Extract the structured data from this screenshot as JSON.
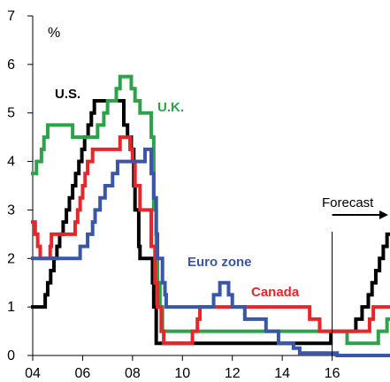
{
  "chart_data": {
    "type": "line",
    "ylabel": "%",
    "xlim": [
      2004,
      2018
    ],
    "ylim": [
      0,
      7
    ],
    "x_ticks": [
      2004,
      2006,
      2008,
      2010,
      2012,
      2014,
      2016
    ],
    "x_tick_labels": [
      "04",
      "06",
      "08",
      "10",
      "12",
      "14",
      "16"
    ],
    "y_ticks": [
      0,
      1,
      2,
      3,
      4,
      5,
      6,
      7
    ],
    "y_tick_labels": [
      "0",
      "1",
      "2",
      "3",
      "4",
      "5",
      "6",
      "7"
    ],
    "forecast_label": "Forecast",
    "forecast_start": 2016,
    "series": [
      {
        "name": "U.S.",
        "color": "#000000",
        "points": [
          [
            2004,
            1.0
          ],
          [
            2004.5,
            1.0
          ],
          [
            2004.5,
            1.25
          ],
          [
            2004.6,
            1.25
          ],
          [
            2004.6,
            1.5
          ],
          [
            2004.72,
            1.5
          ],
          [
            2004.72,
            1.75
          ],
          [
            2004.85,
            1.75
          ],
          [
            2004.85,
            2.0
          ],
          [
            2004.97,
            2.0
          ],
          [
            2004.97,
            2.25
          ],
          [
            2005.08,
            2.25
          ],
          [
            2005.08,
            2.5
          ],
          [
            2005.22,
            2.5
          ],
          [
            2005.22,
            2.75
          ],
          [
            2005.35,
            2.75
          ],
          [
            2005.35,
            3.0
          ],
          [
            2005.47,
            3.0
          ],
          [
            2005.47,
            3.25
          ],
          [
            2005.6,
            3.25
          ],
          [
            2005.6,
            3.5
          ],
          [
            2005.72,
            3.5
          ],
          [
            2005.72,
            3.75
          ],
          [
            2005.85,
            3.75
          ],
          [
            2005.85,
            4.0
          ],
          [
            2005.97,
            4.0
          ],
          [
            2005.97,
            4.25
          ],
          [
            2006.08,
            4.25
          ],
          [
            2006.08,
            4.5
          ],
          [
            2006.22,
            4.5
          ],
          [
            2006.22,
            4.75
          ],
          [
            2006.35,
            4.75
          ],
          [
            2006.35,
            5.0
          ],
          [
            2006.47,
            5.0
          ],
          [
            2006.47,
            5.25
          ],
          [
            2007.65,
            5.25
          ],
          [
            2007.65,
            4.75
          ],
          [
            2007.8,
            4.75
          ],
          [
            2007.8,
            4.5
          ],
          [
            2007.95,
            4.5
          ],
          [
            2007.95,
            4.25
          ],
          [
            2008.05,
            4.25
          ],
          [
            2008.05,
            3.5
          ],
          [
            2008.1,
            3.5
          ],
          [
            2008.1,
            3.0
          ],
          [
            2008.25,
            3.0
          ],
          [
            2008.25,
            2.25
          ],
          [
            2008.3,
            2.25
          ],
          [
            2008.3,
            2.0
          ],
          [
            2008.8,
            2.0
          ],
          [
            2008.8,
            1.5
          ],
          [
            2008.85,
            1.5
          ],
          [
            2008.85,
            1.0
          ],
          [
            2008.95,
            1.0
          ],
          [
            2008.95,
            0.25
          ],
          [
            2015.95,
            0.25
          ],
          [
            2015.95,
            0.5
          ],
          [
            2016.95,
            0.5
          ],
          [
            2016.95,
            0.75
          ],
          [
            2017.2,
            0.75
          ],
          [
            2017.2,
            1.0
          ],
          [
            2017.45,
            1.0
          ],
          [
            2017.45,
            1.25
          ],
          [
            2017.6,
            1.25
          ],
          [
            2017.6,
            1.5
          ],
          [
            2017.75,
            1.5
          ],
          [
            2017.75,
            1.75
          ],
          [
            2017.9,
            1.75
          ],
          [
            2017.9,
            2.0
          ],
          [
            2018.05,
            2.0
          ],
          [
            2018.05,
            2.25
          ],
          [
            2018.2,
            2.25
          ],
          [
            2018.2,
            2.5
          ],
          [
            2018.3,
            2.5
          ]
        ]
      },
      {
        "name": "U.K.",
        "color": "#2ca24a",
        "points": [
          [
            2004,
            3.75
          ],
          [
            2004.15,
            3.75
          ],
          [
            2004.15,
            4.0
          ],
          [
            2004.35,
            4.0
          ],
          [
            2004.35,
            4.25
          ],
          [
            2004.45,
            4.25
          ],
          [
            2004.45,
            4.5
          ],
          [
            2004.6,
            4.5
          ],
          [
            2004.6,
            4.75
          ],
          [
            2005.6,
            4.75
          ],
          [
            2005.6,
            4.5
          ],
          [
            2006.6,
            4.5
          ],
          [
            2006.6,
            4.75
          ],
          [
            2006.85,
            4.75
          ],
          [
            2006.85,
            5.0
          ],
          [
            2007.0,
            5.0
          ],
          [
            2007.0,
            5.25
          ],
          [
            2007.35,
            5.25
          ],
          [
            2007.35,
            5.5
          ],
          [
            2007.5,
            5.5
          ],
          [
            2007.5,
            5.75
          ],
          [
            2007.95,
            5.75
          ],
          [
            2007.95,
            5.5
          ],
          [
            2008.1,
            5.5
          ],
          [
            2008.1,
            5.25
          ],
          [
            2008.3,
            5.25
          ],
          [
            2008.3,
            5.0
          ],
          [
            2008.75,
            5.0
          ],
          [
            2008.75,
            4.5
          ],
          [
            2008.85,
            4.5
          ],
          [
            2008.85,
            3.0
          ],
          [
            2008.95,
            3.0
          ],
          [
            2008.95,
            2.0
          ],
          [
            2009.0,
            2.0
          ],
          [
            2009.0,
            1.5
          ],
          [
            2009.1,
            1.5
          ],
          [
            2009.1,
            1.0
          ],
          [
            2009.2,
            1.0
          ],
          [
            2009.2,
            0.5
          ],
          [
            2016.6,
            0.5
          ],
          [
            2016.6,
            0.25
          ],
          [
            2017.85,
            0.25
          ],
          [
            2017.85,
            0.5
          ],
          [
            2018.2,
            0.5
          ],
          [
            2018.2,
            0.75
          ],
          [
            2018.3,
            0.75
          ]
        ]
      },
      {
        "name": "Canada",
        "color": "#e8262a",
        "points": [
          [
            2004,
            2.75
          ],
          [
            2004.1,
            2.75
          ],
          [
            2004.1,
            2.5
          ],
          [
            2004.2,
            2.5
          ],
          [
            2004.2,
            2.25
          ],
          [
            2004.3,
            2.25
          ],
          [
            2004.3,
            2.0
          ],
          [
            2004.7,
            2.0
          ],
          [
            2004.7,
            2.25
          ],
          [
            2004.75,
            2.25
          ],
          [
            2004.75,
            2.5
          ],
          [
            2005.7,
            2.5
          ],
          [
            2005.7,
            2.75
          ],
          [
            2005.8,
            2.75
          ],
          [
            2005.8,
            3.0
          ],
          [
            2005.9,
            3.0
          ],
          [
            2005.9,
            3.25
          ],
          [
            2006.0,
            3.25
          ],
          [
            2006.0,
            3.5
          ],
          [
            2006.1,
            3.5
          ],
          [
            2006.1,
            3.75
          ],
          [
            2006.2,
            3.75
          ],
          [
            2006.2,
            4.0
          ],
          [
            2006.4,
            4.0
          ],
          [
            2006.4,
            4.25
          ],
          [
            2007.5,
            4.25
          ],
          [
            2007.5,
            4.5
          ],
          [
            2007.9,
            4.5
          ],
          [
            2007.9,
            4.25
          ],
          [
            2008.0,
            4.25
          ],
          [
            2008.0,
            4.0
          ],
          [
            2008.1,
            4.0
          ],
          [
            2008.1,
            3.5
          ],
          [
            2008.3,
            3.5
          ],
          [
            2008.3,
            3.0
          ],
          [
            2008.75,
            3.0
          ],
          [
            2008.75,
            2.25
          ],
          [
            2008.9,
            2.25
          ],
          [
            2008.9,
            1.5
          ],
          [
            2009.0,
            1.5
          ],
          [
            2009.0,
            1.0
          ],
          [
            2009.15,
            1.0
          ],
          [
            2009.15,
            0.5
          ],
          [
            2009.25,
            0.5
          ],
          [
            2009.25,
            0.25
          ],
          [
            2010.4,
            0.25
          ],
          [
            2010.4,
            0.5
          ],
          [
            2010.6,
            0.5
          ],
          [
            2010.6,
            0.75
          ],
          [
            2010.7,
            0.75
          ],
          [
            2010.7,
            1.0
          ],
          [
            2015.1,
            1.0
          ],
          [
            2015.1,
            0.75
          ],
          [
            2015.5,
            0.75
          ],
          [
            2015.5,
            0.5
          ],
          [
            2017.5,
            0.5
          ],
          [
            2017.5,
            0.75
          ],
          [
            2017.65,
            0.75
          ],
          [
            2017.65,
            1.0
          ],
          [
            2018.3,
            1.0
          ]
        ]
      },
      {
        "name": "Euro zone",
        "color": "#3a56a8",
        "points": [
          [
            2004,
            2.0
          ],
          [
            2005.9,
            2.0
          ],
          [
            2005.9,
            2.25
          ],
          [
            2006.2,
            2.25
          ],
          [
            2006.2,
            2.5
          ],
          [
            2006.4,
            2.5
          ],
          [
            2006.4,
            2.75
          ],
          [
            2006.5,
            2.75
          ],
          [
            2006.5,
            3.0
          ],
          [
            2006.7,
            3.0
          ],
          [
            2006.7,
            3.25
          ],
          [
            2006.9,
            3.25
          ],
          [
            2006.9,
            3.5
          ],
          [
            2007.2,
            3.5
          ],
          [
            2007.2,
            3.75
          ],
          [
            2007.4,
            3.75
          ],
          [
            2007.4,
            4.0
          ],
          [
            2008.5,
            4.0
          ],
          [
            2008.5,
            4.25
          ],
          [
            2008.75,
            4.25
          ],
          [
            2008.75,
            3.75
          ],
          [
            2008.85,
            3.75
          ],
          [
            2008.85,
            3.25
          ],
          [
            2008.95,
            3.25
          ],
          [
            2008.95,
            2.5
          ],
          [
            2009.0,
            2.5
          ],
          [
            2009.0,
            2.0
          ],
          [
            2009.2,
            2.0
          ],
          [
            2009.2,
            1.5
          ],
          [
            2009.3,
            1.5
          ],
          [
            2009.3,
            1.25
          ],
          [
            2009.35,
            1.25
          ],
          [
            2009.35,
            1.0
          ],
          [
            2011.25,
            1.0
          ],
          [
            2011.25,
            1.25
          ],
          [
            2011.5,
            1.25
          ],
          [
            2011.5,
            1.5
          ],
          [
            2011.85,
            1.5
          ],
          [
            2011.85,
            1.25
          ],
          [
            2012.0,
            1.25
          ],
          [
            2012.0,
            1.0
          ],
          [
            2012.5,
            1.0
          ],
          [
            2012.5,
            0.75
          ],
          [
            2013.35,
            0.75
          ],
          [
            2013.35,
            0.5
          ],
          [
            2013.85,
            0.5
          ],
          [
            2013.85,
            0.25
          ],
          [
            2014.45,
            0.25
          ],
          [
            2014.45,
            0.15
          ],
          [
            2014.7,
            0.15
          ],
          [
            2014.7,
            0.05
          ],
          [
            2016.2,
            0.05
          ],
          [
            2016.2,
            0.0
          ],
          [
            2018.3,
            0.0
          ]
        ]
      }
    ]
  },
  "annotations": {
    "us": "U.S.",
    "uk": "U.K.",
    "euro": "Euro zone",
    "canada": "Canada"
  }
}
